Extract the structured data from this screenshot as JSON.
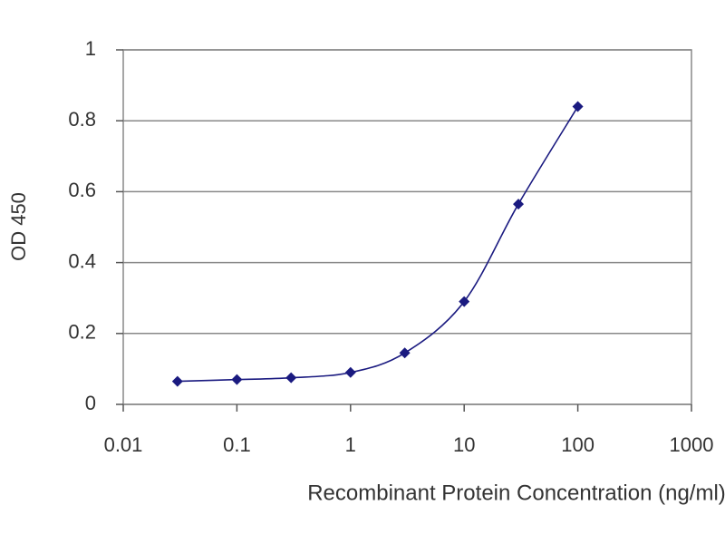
{
  "chart_data": {
    "type": "line",
    "x_label": "Recombinant Protein Concentration (ng/ml)",
    "y_label": "OD 450",
    "x": [
      0.03,
      0.1,
      0.3,
      1,
      3,
      10,
      30,
      100
    ],
    "series": [
      {
        "color": "#1a1a80",
        "values": [
          0.065,
          0.07,
          0.075,
          0.09,
          0.145,
          0.29,
          0.565,
          0.84
        ]
      }
    ],
    "xlim": [
      0.01,
      1000
    ],
    "xticks": [
      0.01,
      0.1,
      1,
      10,
      100,
      1000
    ],
    "log_x": true,
    "ylim": [
      0,
      1
    ],
    "yticks": [
      0,
      0.2,
      0.4,
      0.6,
      0.8,
      1
    ],
    "grid": true
  }
}
